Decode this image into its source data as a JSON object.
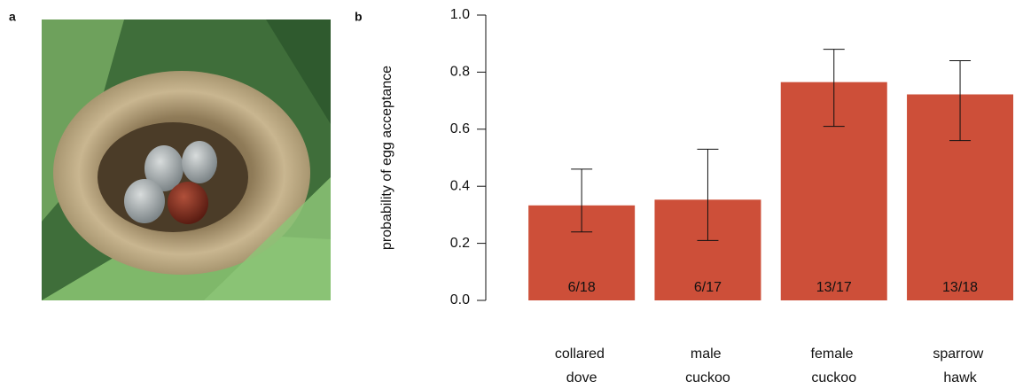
{
  "panel_a": {
    "label": "a"
  },
  "chart_data": {
    "type": "bar",
    "panel_label": "b",
    "ylabel": "probability of egg acceptance",
    "categories": [
      "collared dove",
      "male cuckoo",
      "female cuckoo",
      "sparrow hawk"
    ],
    "values": [
      0.333,
      0.353,
      0.765,
      0.722
    ],
    "value_labels": [
      "6/18",
      "6/17",
      "13/17",
      "13/18"
    ],
    "lower": [
      0.24,
      0.21,
      0.61,
      0.56
    ],
    "upper": [
      0.46,
      0.53,
      0.88,
      0.84
    ],
    "color": "#cd4f39",
    "ylim": [
      0,
      1
    ],
    "yticks": [
      {
        "value": 0,
        "label": "0.0"
      },
      {
        "value": 0.2,
        "label": "0.2"
      },
      {
        "value": 0.4,
        "label": "0.4"
      },
      {
        "value": 0.6,
        "label": "0.6"
      },
      {
        "value": 0.8,
        "label": "0.8"
      },
      {
        "value": 1,
        "label": "1.0"
      }
    ]
  }
}
